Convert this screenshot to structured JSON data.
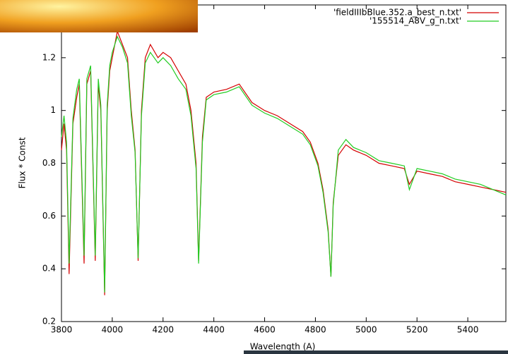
{
  "chart_data": {
    "type": "line",
    "x_label": "Wavelength (A)",
    "y_label": "Flux * Const",
    "x": [
      3800,
      3810,
      3820,
      3830,
      3845,
      3860,
      3870,
      3889,
      3900,
      3915,
      3933,
      3945,
      3955,
      3970,
      3980,
      3990,
      4000,
      4020,
      4040,
      4060,
      4075,
      4090,
      4102,
      4115,
      4130,
      4150,
      4180,
      4200,
      4230,
      4260,
      4290,
      4310,
      4330,
      4340,
      4355,
      4370,
      4400,
      4450,
      4500,
      4550,
      4600,
      4650,
      4700,
      4750,
      4780,
      4810,
      4830,
      4850,
      4861,
      4870,
      4890,
      4920,
      4950,
      5000,
      5050,
      5100,
      5150,
      5170,
      5200,
      5250,
      5300,
      5350,
      5400,
      5450,
      5500,
      5550
    ],
    "series": [
      {
        "name": "'fieldIIIbBlue.352.a_best_n.txt'",
        "color": "#d40000",
        "values": [
          0.85,
          0.95,
          0.85,
          0.38,
          0.95,
          1.05,
          1.1,
          0.42,
          1.1,
          1.15,
          0.43,
          1.1,
          1.0,
          0.3,
          1.0,
          1.15,
          1.2,
          1.3,
          1.25,
          1.2,
          1.0,
          0.85,
          0.43,
          1.0,
          1.2,
          1.25,
          1.2,
          1.22,
          1.2,
          1.15,
          1.1,
          1.0,
          0.8,
          0.43,
          0.9,
          1.05,
          1.07,
          1.08,
          1.1,
          1.03,
          1.0,
          0.98,
          0.95,
          0.92,
          0.88,
          0.8,
          0.7,
          0.55,
          0.37,
          0.65,
          0.83,
          0.87,
          0.85,
          0.83,
          0.8,
          0.79,
          0.78,
          0.72,
          0.77,
          0.76,
          0.75,
          0.73,
          0.72,
          0.71,
          0.7,
          0.69
        ]
      },
      {
        "name": "'155514_A8V_g_n.txt'",
        "color": "#22cc22",
        "values": [
          0.9,
          0.98,
          0.88,
          0.42,
          0.97,
          1.08,
          1.12,
          0.45,
          1.12,
          1.17,
          0.45,
          1.12,
          1.02,
          0.31,
          1.02,
          1.17,
          1.22,
          1.28,
          1.24,
          1.18,
          0.98,
          0.84,
          0.44,
          0.98,
          1.18,
          1.22,
          1.18,
          1.2,
          1.17,
          1.12,
          1.08,
          0.98,
          0.78,
          0.42,
          0.88,
          1.04,
          1.06,
          1.07,
          1.09,
          1.02,
          0.99,
          0.97,
          0.94,
          0.91,
          0.87,
          0.79,
          0.69,
          0.54,
          0.37,
          0.64,
          0.85,
          0.89,
          0.86,
          0.84,
          0.81,
          0.8,
          0.79,
          0.7,
          0.78,
          0.77,
          0.76,
          0.74,
          0.73,
          0.72,
          0.7,
          0.68
        ]
      }
    ],
    "xlim": [
      3800,
      5550
    ],
    "ylim": [
      0.2,
      1.4
    ],
    "xticks": [
      3800,
      4000,
      4200,
      4400,
      4600,
      4800,
      5000,
      5200,
      5400
    ],
    "yticks": [
      0.2,
      0.4,
      0.6,
      0.8,
      1,
      1.2
    ],
    "grid": false,
    "legend": "upper right"
  }
}
